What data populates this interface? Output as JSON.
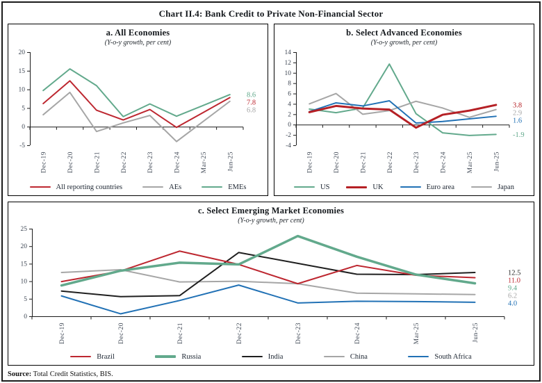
{
  "header": {
    "title": "Chart II.4: Bank Credit to Private Non-Financial Sector"
  },
  "chart_data": [
    {
      "type": "line",
      "title": "a. All Economies",
      "subtitle": "(Y-o-y growth, per cent)",
      "categories": [
        "Dec-19",
        "Dec-20",
        "Dec-21",
        "Dec-22",
        "Dec-23",
        "Dec-24",
        "Mar-25",
        "Jun-25"
      ],
      "ylim": [
        -5,
        20
      ],
      "y_ticks": [
        20,
        15,
        10,
        5,
        0,
        -5
      ],
      "grid": false,
      "legend_position": "bottom",
      "draw_order": [
        1,
        2,
        0
      ],
      "series": [
        {
          "name": "All reporting countries",
          "color": "#bd2730",
          "width": 2,
          "values": [
            6.2,
            12.3,
            4.4,
            1.8,
            4.6,
            -0.2,
            3.8,
            7.8
          ],
          "end_label": "7.8"
        },
        {
          "name": "AEs",
          "color": "#a6a6a6",
          "width": 2,
          "values": [
            3.2,
            9.2,
            -1.3,
            1.0,
            3.0,
            -4.0,
            1.4,
            6.8
          ],
          "end_label": "6.8"
        },
        {
          "name": "EMEs",
          "color": "#62a98c",
          "width": 2,
          "values": [
            9.7,
            15.5,
            11.0,
            2.7,
            6.1,
            2.8,
            5.7,
            8.6
          ],
          "end_label": "8.6"
        }
      ]
    },
    {
      "type": "line",
      "title": "b. Select Advanced Economies",
      "subtitle": "(Y-o-y growth, per cent)",
      "categories": [
        "Dec-19",
        "Dec-20",
        "Dec-21",
        "Dec-22",
        "Dec-23",
        "Dec-24",
        "Mar-25",
        "Jun-25"
      ],
      "ylim": [
        -4,
        14
      ],
      "y_ticks": [
        14,
        12,
        10,
        8,
        6,
        4,
        2,
        0,
        -2,
        -4
      ],
      "grid": false,
      "legend_position": "bottom",
      "draw_order": [
        0,
        3,
        2,
        1
      ],
      "series": [
        {
          "name": "US",
          "color": "#62a98c",
          "width": 2,
          "values": [
            3.0,
            2.3,
            3.2,
            11.7,
            2.1,
            -1.6,
            -2.1,
            -1.9
          ],
          "end_label": "-1.9"
        },
        {
          "name": "UK",
          "color": "#b52025",
          "width": 3,
          "values": [
            2.4,
            3.6,
            3.1,
            2.9,
            -0.6,
            1.9,
            2.7,
            3.8
          ],
          "end_label": "3.8"
        },
        {
          "name": "Euro area",
          "color": "#2171b5",
          "width": 2,
          "values": [
            2.5,
            4.2,
            3.6,
            4.6,
            0.3,
            0.6,
            1.1,
            1.6
          ],
          "end_label": "1.6"
        },
        {
          "name": "Japan",
          "color": "#a6a6a6",
          "width": 2,
          "values": [
            4.0,
            6.0,
            2.0,
            2.7,
            4.5,
            3.2,
            1.4,
            2.9
          ],
          "end_label": "2.9"
        }
      ]
    },
    {
      "type": "line",
      "title": "c. Select Emerging Market Economies",
      "subtitle": "(Y-o-y growth, per cent)",
      "categories": [
        "Dec-19",
        "Dec-20",
        "Dec-21",
        "Dec-22",
        "Dec-23",
        "Dec-24",
        "Mar-25",
        "Jun-25"
      ],
      "ylim": [
        0,
        25
      ],
      "y_ticks": [
        25,
        20,
        15,
        10,
        5,
        0
      ],
      "grid": false,
      "legend_position": "bottom",
      "draw_order": [
        3,
        4,
        2,
        0,
        1
      ],
      "series": [
        {
          "name": "Brazil",
          "color": "#bd2730",
          "width": 2,
          "values": [
            9.9,
            12.9,
            18.6,
            14.8,
            9.3,
            14.5,
            11.7,
            11.0
          ],
          "end_label": "11.0"
        },
        {
          "name": "Russia",
          "color": "#62a98c",
          "width": 3.5,
          "values": [
            8.8,
            13.0,
            15.3,
            14.8,
            22.9,
            17.0,
            11.9,
            9.4
          ],
          "end_label": "9.4"
        },
        {
          "name": "India",
          "color": "#1f1f1f",
          "width": 2,
          "values": [
            7.2,
            5.6,
            5.9,
            18.2,
            15.1,
            12.0,
            11.9,
            12.5
          ],
          "end_label": "12.5"
        },
        {
          "name": "China",
          "color": "#a6a6a6",
          "width": 2,
          "values": [
            12.5,
            13.3,
            9.8,
            10.0,
            9.3,
            6.6,
            6.4,
            6.2
          ],
          "end_label": "6.2"
        },
        {
          "name": "South Africa",
          "color": "#2171b5",
          "width": 2,
          "values": [
            5.8,
            0.7,
            4.5,
            8.9,
            3.8,
            4.3,
            4.2,
            4.0
          ],
          "end_label": "4.0"
        }
      ]
    }
  ],
  "footer": {
    "source_label": "Source:",
    "source_text": "Total Credit Statistics, BIS."
  }
}
